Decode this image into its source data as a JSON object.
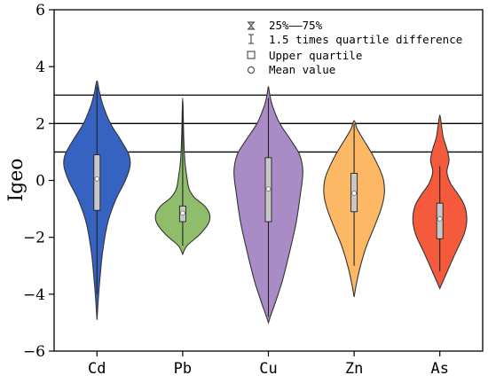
{
  "chart_data": {
    "type": "violin",
    "ylabel": "Igeo",
    "xlabel": "",
    "ylim": [
      -6,
      6
    ],
    "yticks": [
      -6,
      -4,
      -2,
      0,
      2,
      4,
      6
    ],
    "categories": [
      "Cd",
      "Pb",
      "Cu",
      "Zn",
      "As"
    ],
    "colors": [
      "#3662c2",
      "#8fbd6b",
      "#a98bc6",
      "#fcb865",
      "#f55a3c"
    ],
    "reference_lines": [
      1,
      2,
      3
    ],
    "legend": [
      {
        "symbol": "hourglass",
        "label": "25%——75%"
      },
      {
        "symbol": "whisker",
        "label": "1.5 times quartile difference"
      },
      {
        "symbol": "square",
        "label": "Upper quartile"
      },
      {
        "symbol": "circle",
        "label": "Mean value"
      }
    ],
    "series": [
      {
        "category": "Cd",
        "min": -4.6,
        "max": 3.5,
        "q1": -1.05,
        "median": 0.0,
        "q3": 0.9,
        "whisker_low": -4.0,
        "whisker_high": 3.3,
        "mean": 0.05,
        "profile": [
          [
            -4.9,
            0.0
          ],
          [
            -4.3,
            0.03
          ],
          [
            -3.5,
            0.08
          ],
          [
            -2.5,
            0.16
          ],
          [
            -1.5,
            0.3
          ],
          [
            -0.7,
            0.52
          ],
          [
            0.0,
            0.8
          ],
          [
            0.5,
            0.93
          ],
          [
            0.9,
            0.9
          ],
          [
            1.4,
            0.68
          ],
          [
            2.0,
            0.38
          ],
          [
            2.6,
            0.18
          ],
          [
            3.1,
            0.07
          ],
          [
            3.5,
            0.0
          ]
        ]
      },
      {
        "category": "Pb",
        "min": -2.6,
        "max": 2.9,
        "q1": -1.45,
        "median": -1.2,
        "q3": -0.9,
        "whisker_low": -2.3,
        "whisker_high": 2.8,
        "mean": -1.15,
        "profile": [
          [
            -2.6,
            0.0
          ],
          [
            -2.3,
            0.12
          ],
          [
            -1.9,
            0.48
          ],
          [
            -1.5,
            0.73
          ],
          [
            -1.2,
            0.76
          ],
          [
            -0.9,
            0.62
          ],
          [
            -0.6,
            0.33
          ],
          [
            -0.3,
            0.18
          ],
          [
            0.1,
            0.12
          ],
          [
            0.7,
            0.06
          ],
          [
            1.5,
            0.03
          ],
          [
            2.3,
            0.015
          ],
          [
            2.9,
            0.0
          ]
        ]
      },
      {
        "category": "Cu",
        "min": -4.9,
        "max": 3.3,
        "q1": -1.45,
        "median": -0.3,
        "q3": 0.8,
        "whisker_low": -4.8,
        "whisker_high": 2.9,
        "mean": -0.3,
        "profile": [
          [
            -5.0,
            0.0
          ],
          [
            -4.7,
            0.08
          ],
          [
            -4.2,
            0.22
          ],
          [
            -3.5,
            0.4
          ],
          [
            -2.5,
            0.6
          ],
          [
            -1.5,
            0.78
          ],
          [
            -0.5,
            0.9
          ],
          [
            0.3,
            0.97
          ],
          [
            0.9,
            0.88
          ],
          [
            1.4,
            0.64
          ],
          [
            2.0,
            0.32
          ],
          [
            2.6,
            0.12
          ],
          [
            3.0,
            0.04
          ],
          [
            3.3,
            0.0
          ]
        ]
      },
      {
        "category": "Zn",
        "min": -4.1,
        "max": 2.1,
        "q1": -1.1,
        "median": -0.5,
        "q3": 0.25,
        "whisker_low": -3.0,
        "whisker_high": 2.0,
        "mean": -0.45,
        "profile": [
          [
            -4.1,
            0.0
          ],
          [
            -3.6,
            0.07
          ],
          [
            -3.0,
            0.18
          ],
          [
            -2.3,
            0.35
          ],
          [
            -1.6,
            0.58
          ],
          [
            -1.0,
            0.76
          ],
          [
            -0.5,
            0.85
          ],
          [
            0.0,
            0.83
          ],
          [
            0.4,
            0.72
          ],
          [
            0.9,
            0.52
          ],
          [
            1.4,
            0.28
          ],
          [
            1.8,
            0.09
          ],
          [
            2.1,
            0.0
          ]
        ]
      },
      {
        "category": "As",
        "min": -3.8,
        "max": 2.3,
        "q1": -2.05,
        "median": -1.4,
        "q3": -0.8,
        "whisker_low": -3.2,
        "whisker_high": 0.5,
        "mean": -1.35,
        "profile": [
          [
            -3.8,
            0.0
          ],
          [
            -3.4,
            0.14
          ],
          [
            -3.0,
            0.28
          ],
          [
            -2.5,
            0.46
          ],
          [
            -1.9,
            0.68
          ],
          [
            -1.4,
            0.76
          ],
          [
            -0.9,
            0.7
          ],
          [
            -0.5,
            0.52
          ],
          [
            -0.1,
            0.3
          ],
          [
            0.3,
            0.2
          ],
          [
            0.7,
            0.26
          ],
          [
            1.1,
            0.2
          ],
          [
            1.5,
            0.1
          ],
          [
            1.9,
            0.05
          ],
          [
            2.3,
            0.0
          ]
        ]
      }
    ]
  }
}
